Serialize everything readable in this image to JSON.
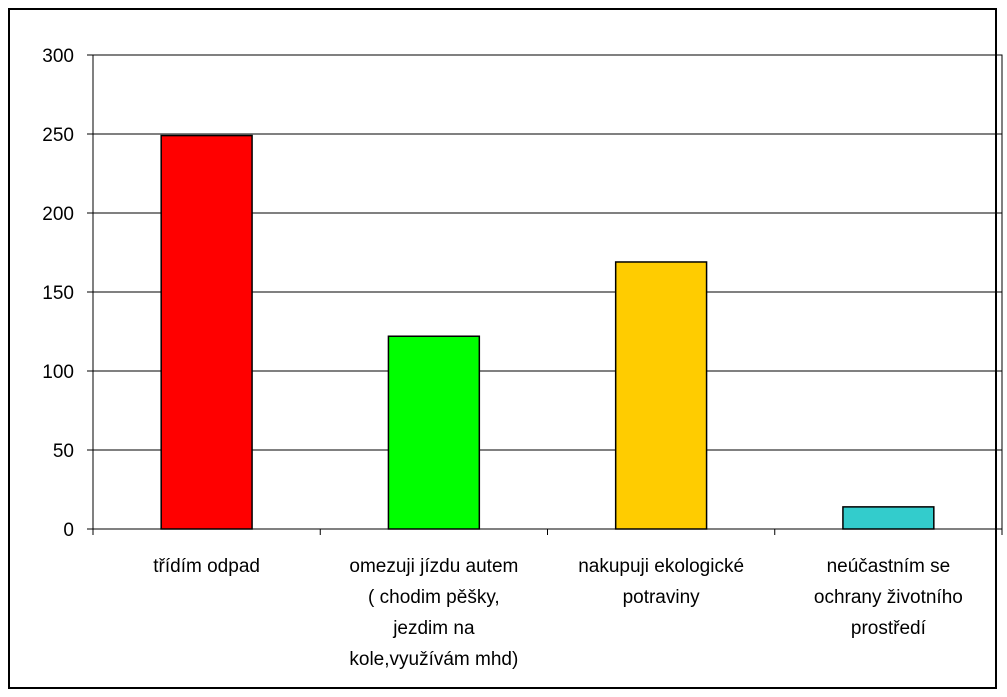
{
  "chart_data": {
    "type": "bar",
    "title": "",
    "xlabel": "",
    "ylabel": "",
    "ylim": [
      0,
      300
    ],
    "yticks": [
      0,
      50,
      100,
      150,
      200,
      250,
      300
    ],
    "grid": true,
    "legend": "none",
    "categories": [
      [
        "třídím odpad"
      ],
      [
        "omezuji jízdu autem",
        "( chodim pěšky,",
        "jezdim na",
        "kole,využívám mhd)"
      ],
      [
        "nakupuji ekologické",
        "potraviny"
      ],
      [
        "neúčastním se",
        "ochrany životního",
        "prostředí"
      ]
    ],
    "values": [
      249,
      122,
      169,
      14
    ],
    "colors": [
      "#ff0000",
      "#00ff00",
      "#ffcc00",
      "#33cccc"
    ]
  }
}
